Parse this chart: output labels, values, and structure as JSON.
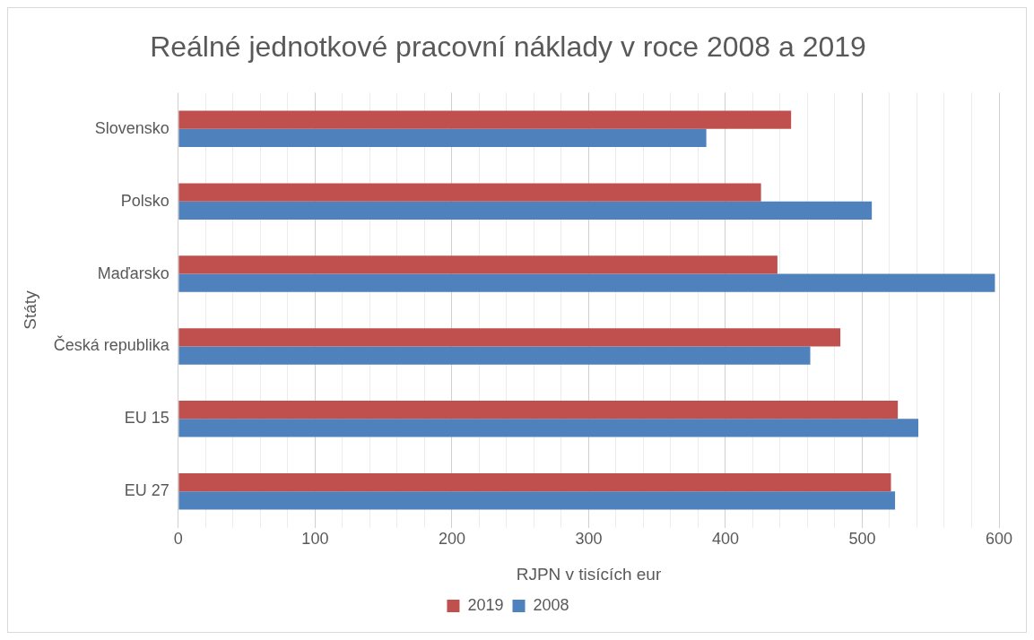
{
  "chart_data": {
    "type": "bar",
    "orientation": "horizontal",
    "title": "Reálné jednotkové pracovní náklady v roce 2008 a 2019",
    "xlabel": "RJPN v tisících eur",
    "ylabel": "Státy",
    "categories": [
      "Slovensko",
      "Polsko",
      "Maďarsko",
      "Česká republika",
      "EU 15",
      "EU 27"
    ],
    "series": [
      {
        "name": "2019",
        "color": "#c0504d",
        "values": [
          448,
          426,
          438,
          484,
          526,
          521
        ]
      },
      {
        "name": "2008",
        "color": "#4f81bd",
        "values": [
          386,
          507,
          597,
          462,
          541,
          524
        ]
      }
    ],
    "xlim": [
      0,
      600
    ],
    "xticks": [
      0,
      {
        "value": 20,
        "label": null
      },
      {
        "value": 40,
        "label": null
      },
      {
        "value": 60,
        "label": null
      },
      {
        "value": 80,
        "label": null
      },
      100,
      {
        "value": 120,
        "label": null
      },
      {
        "value": 140,
        "label": null
      },
      {
        "value": 160,
        "label": null
      },
      {
        "value": 180,
        "label": null
      },
      200,
      {
        "value": 220,
        "label": null
      },
      {
        "value": 240,
        "label": null
      },
      {
        "value": 260,
        "label": null
      },
      {
        "value": 280,
        "label": null
      },
      300,
      {
        "value": 320,
        "label": null
      },
      {
        "value": 340,
        "label": null
      },
      {
        "value": 360,
        "label": null
      },
      {
        "value": 380,
        "label": null
      },
      400,
      {
        "value": 420,
        "label": null
      },
      {
        "value": 440,
        "label": null
      },
      {
        "value": 460,
        "label": null
      },
      {
        "value": 480,
        "label": null
      },
      500,
      {
        "value": 520,
        "label": null
      },
      {
        "value": 540,
        "label": null
      },
      {
        "value": 560,
        "label": null
      },
      {
        "value": 580,
        "label": null
      },
      600
    ],
    "grid": "x",
    "legend": "bottom"
  }
}
